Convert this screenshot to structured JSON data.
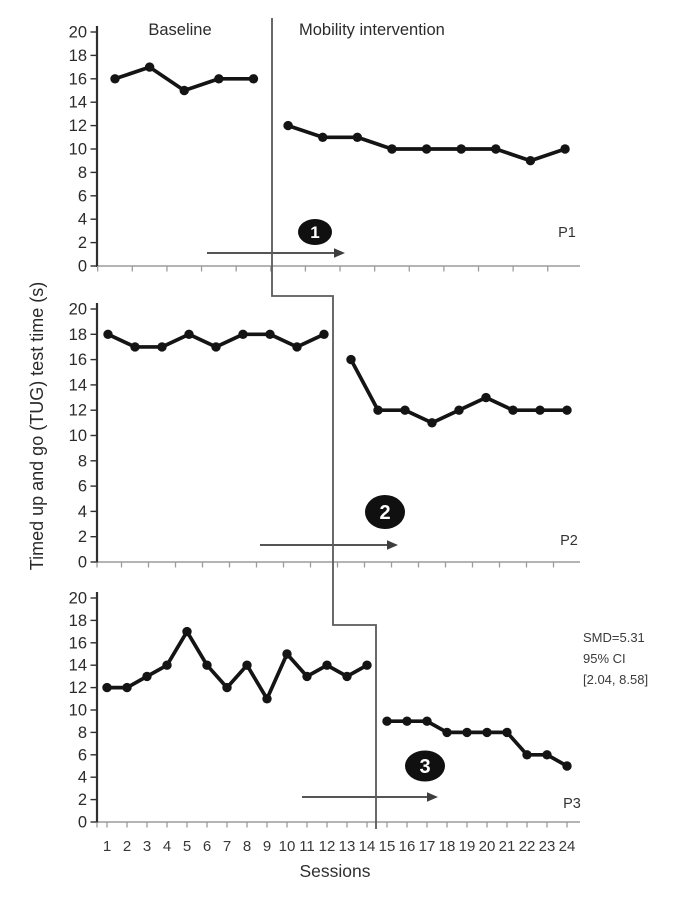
{
  "figure": {
    "phase_labels": {
      "baseline": "Baseline",
      "intervention": "Mobility intervention"
    },
    "y_axis_title": "Timed up and go (TUG) test time (s)",
    "x_axis_title": "Sessions",
    "annotation": {
      "smd": "SMD=5.31",
      "ci_label": "95% CI",
      "ci_interval": "[2.04, 8.58]"
    }
  },
  "chart_data": [
    {
      "type": "line",
      "participant": "P1",
      "phase_marker": "1",
      "ylim": [
        0,
        20
      ],
      "ytick_step": 2,
      "sessions_total": 14,
      "phase_change_after_session": 5,
      "series": [
        {
          "name": "baseline",
          "sessions": [
            1,
            2,
            3,
            4,
            5
          ],
          "values": [
            16,
            17,
            15,
            16,
            16
          ]
        },
        {
          "name": "mobility_intervention",
          "sessions": [
            6,
            7,
            8,
            9,
            10,
            11,
            12,
            13,
            14
          ],
          "values": [
            12,
            11,
            11,
            10,
            10,
            10,
            10,
            9,
            10
          ]
        }
      ]
    },
    {
      "type": "line",
      "participant": "P2",
      "phase_marker": "2",
      "ylim": [
        0,
        20
      ],
      "ytick_step": 2,
      "sessions_total": 18,
      "phase_change_after_session": 9,
      "series": [
        {
          "name": "baseline",
          "sessions": [
            1,
            2,
            3,
            4,
            5,
            6,
            7,
            8,
            9
          ],
          "values": [
            18,
            17,
            17,
            18,
            17,
            18,
            18,
            17,
            18
          ]
        },
        {
          "name": "mobility_intervention",
          "sessions": [
            10,
            11,
            12,
            13,
            14,
            15,
            16,
            17,
            18
          ],
          "values": [
            16,
            12,
            12,
            11,
            12,
            13,
            12,
            12,
            12
          ]
        }
      ]
    },
    {
      "type": "line",
      "participant": "P3",
      "phase_marker": "3",
      "ylim": [
        0,
        20
      ],
      "ytick_step": 2,
      "sessions_total": 24,
      "phase_change_after_session": 14,
      "series": [
        {
          "name": "baseline",
          "sessions": [
            1,
            2,
            3,
            4,
            5,
            6,
            7,
            8,
            9,
            10,
            11,
            12,
            13,
            14
          ],
          "values": [
            12,
            12,
            13,
            14,
            17,
            14,
            12,
            14,
            11,
            15,
            13,
            14,
            13,
            14
          ]
        },
        {
          "name": "mobility_intervention",
          "sessions": [
            15,
            16,
            17,
            18,
            19,
            20,
            21,
            22,
            23,
            24
          ],
          "values": [
            9,
            9,
            9,
            8,
            8,
            8,
            8,
            6,
            6,
            5
          ]
        }
      ]
    }
  ],
  "x_tick_labels": [
    "1",
    "2",
    "3",
    "4",
    "5",
    "6",
    "7",
    "8",
    "9",
    "10",
    "11",
    "12",
    "13",
    "14",
    "15",
    "16",
    "17",
    "18",
    "19",
    "20",
    "21",
    "22",
    "23",
    "24"
  ],
  "colors": {
    "series": "#141414",
    "axis_dark": "#2f2f2f",
    "axis_light": "#9c9c9c",
    "phase_line": "#5a5a5a",
    "arrow": "#3d3d3d",
    "badge": "#101010",
    "badge_text": "#ffffff"
  }
}
